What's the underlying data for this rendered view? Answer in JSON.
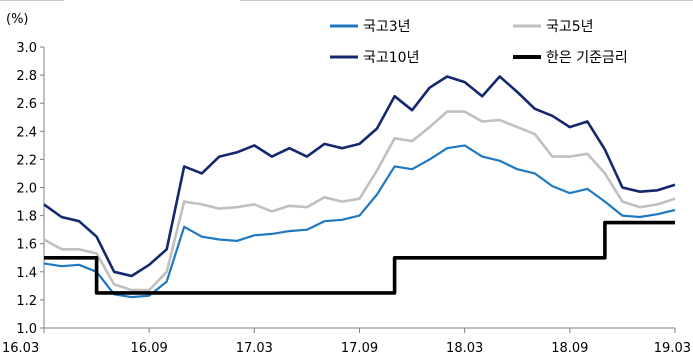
{
  "chart_data": {
    "type": "line",
    "unit": "(%)",
    "ylim": [
      1.0,
      3.0
    ],
    "y_ticks": [
      "1.0",
      "1.2",
      "1.4",
      "1.6",
      "1.8",
      "2.0",
      "2.2",
      "2.4",
      "2.6",
      "2.8",
      "3.0"
    ],
    "x_ticks": [
      "16.03",
      "16.09",
      "17.03",
      "17.09",
      "18.03",
      "18.09",
      "19.03"
    ],
    "grid": false,
    "legend_position": "top-right",
    "series": [
      {
        "name": "국고3년",
        "color": "#1f78c1",
        "step": false,
        "points": [
          [
            "16.03",
            1.46
          ],
          [
            "16.04",
            1.44
          ],
          [
            "16.05",
            1.45
          ],
          [
            "16.06",
            1.4
          ],
          [
            "16.07",
            1.24
          ],
          [
            "16.08",
            1.22
          ],
          [
            "16.09",
            1.23
          ],
          [
            "16.10",
            1.33
          ],
          [
            "16.11",
            1.72
          ],
          [
            "16.12",
            1.65
          ],
          [
            "17.01",
            1.63
          ],
          [
            "17.02",
            1.62
          ],
          [
            "17.03",
            1.66
          ],
          [
            "17.04",
            1.67
          ],
          [
            "17.05",
            1.69
          ],
          [
            "17.06",
            1.7
          ],
          [
            "17.07",
            1.76
          ],
          [
            "17.08",
            1.77
          ],
          [
            "17.09",
            1.8
          ],
          [
            "17.10",
            1.95
          ],
          [
            "17.11",
            2.15
          ],
          [
            "17.12",
            2.13
          ],
          [
            "18.01",
            2.2
          ],
          [
            "18.02",
            2.28
          ],
          [
            "18.03",
            2.3
          ],
          [
            "18.04",
            2.22
          ],
          [
            "18.05",
            2.19
          ],
          [
            "18.06",
            2.13
          ],
          [
            "18.07",
            2.1
          ],
          [
            "18.08",
            2.01
          ],
          [
            "18.09",
            1.96
          ],
          [
            "18.10",
            1.99
          ],
          [
            "18.11",
            1.9
          ],
          [
            "18.12",
            1.8
          ],
          [
            "19.01",
            1.79
          ],
          [
            "19.02",
            1.81
          ],
          [
            "19.03",
            1.84
          ]
        ]
      },
      {
        "name": "국고5년",
        "color": "#c0c0c0",
        "step": false,
        "points": [
          [
            "16.03",
            1.63
          ],
          [
            "16.04",
            1.56
          ],
          [
            "16.05",
            1.56
          ],
          [
            "16.06",
            1.53
          ],
          [
            "16.07",
            1.31
          ],
          [
            "16.08",
            1.27
          ],
          [
            "16.09",
            1.27
          ],
          [
            "16.10",
            1.4
          ],
          [
            "16.11",
            1.9
          ],
          [
            "16.12",
            1.88
          ],
          [
            "17.01",
            1.85
          ],
          [
            "17.02",
            1.86
          ],
          [
            "17.03",
            1.88
          ],
          [
            "17.04",
            1.83
          ],
          [
            "17.05",
            1.87
          ],
          [
            "17.06",
            1.86
          ],
          [
            "17.07",
            1.93
          ],
          [
            "17.08",
            1.9
          ],
          [
            "17.09",
            1.92
          ],
          [
            "17.10",
            2.12
          ],
          [
            "17.11",
            2.35
          ],
          [
            "17.12",
            2.33
          ],
          [
            "18.01",
            2.43
          ],
          [
            "18.02",
            2.54
          ],
          [
            "18.03",
            2.54
          ],
          [
            "18.04",
            2.47
          ],
          [
            "18.05",
            2.48
          ],
          [
            "18.06",
            2.43
          ],
          [
            "18.07",
            2.38
          ],
          [
            "18.08",
            2.22
          ],
          [
            "18.09",
            2.22
          ],
          [
            "18.10",
            2.24
          ],
          [
            "18.11",
            2.1
          ],
          [
            "18.12",
            1.9
          ],
          [
            "19.01",
            1.86
          ],
          [
            "19.02",
            1.88
          ],
          [
            "19.03",
            1.92
          ]
        ]
      },
      {
        "name": "국고10년",
        "color": "#14286e",
        "step": false,
        "points": [
          [
            "16.03",
            1.88
          ],
          [
            "16.04",
            1.79
          ],
          [
            "16.05",
            1.76
          ],
          [
            "16.06",
            1.65
          ],
          [
            "16.07",
            1.4
          ],
          [
            "16.08",
            1.37
          ],
          [
            "16.09",
            1.45
          ],
          [
            "16.10",
            1.56
          ],
          [
            "16.11",
            2.15
          ],
          [
            "16.12",
            2.1
          ],
          [
            "17.01",
            2.22
          ],
          [
            "17.02",
            2.25
          ],
          [
            "17.03",
            2.3
          ],
          [
            "17.04",
            2.22
          ],
          [
            "17.05",
            2.28
          ],
          [
            "17.06",
            2.22
          ],
          [
            "17.07",
            2.31
          ],
          [
            "17.08",
            2.28
          ],
          [
            "17.09",
            2.31
          ],
          [
            "17.10",
            2.42
          ],
          [
            "17.11",
            2.65
          ],
          [
            "17.12",
            2.55
          ],
          [
            "18.01",
            2.71
          ],
          [
            "18.02",
            2.79
          ],
          [
            "18.03",
            2.75
          ],
          [
            "18.04",
            2.65
          ],
          [
            "18.05",
            2.79
          ],
          [
            "18.06",
            2.68
          ],
          [
            "18.07",
            2.56
          ],
          [
            "18.08",
            2.51
          ],
          [
            "18.09",
            2.43
          ],
          [
            "18.10",
            2.47
          ],
          [
            "18.11",
            2.27
          ],
          [
            "18.12",
            2.0
          ],
          [
            "19.01",
            1.97
          ],
          [
            "19.02",
            1.98
          ],
          [
            "19.03",
            2.02
          ]
        ]
      },
      {
        "name": "한은 기준금리",
        "color": "#000000",
        "step": true,
        "points": [
          [
            "16.03",
            1.5
          ],
          [
            "16.06",
            1.25
          ],
          [
            "17.11",
            1.5
          ],
          [
            "18.11",
            1.75
          ],
          [
            "19.03",
            1.75
          ]
        ]
      }
    ]
  }
}
